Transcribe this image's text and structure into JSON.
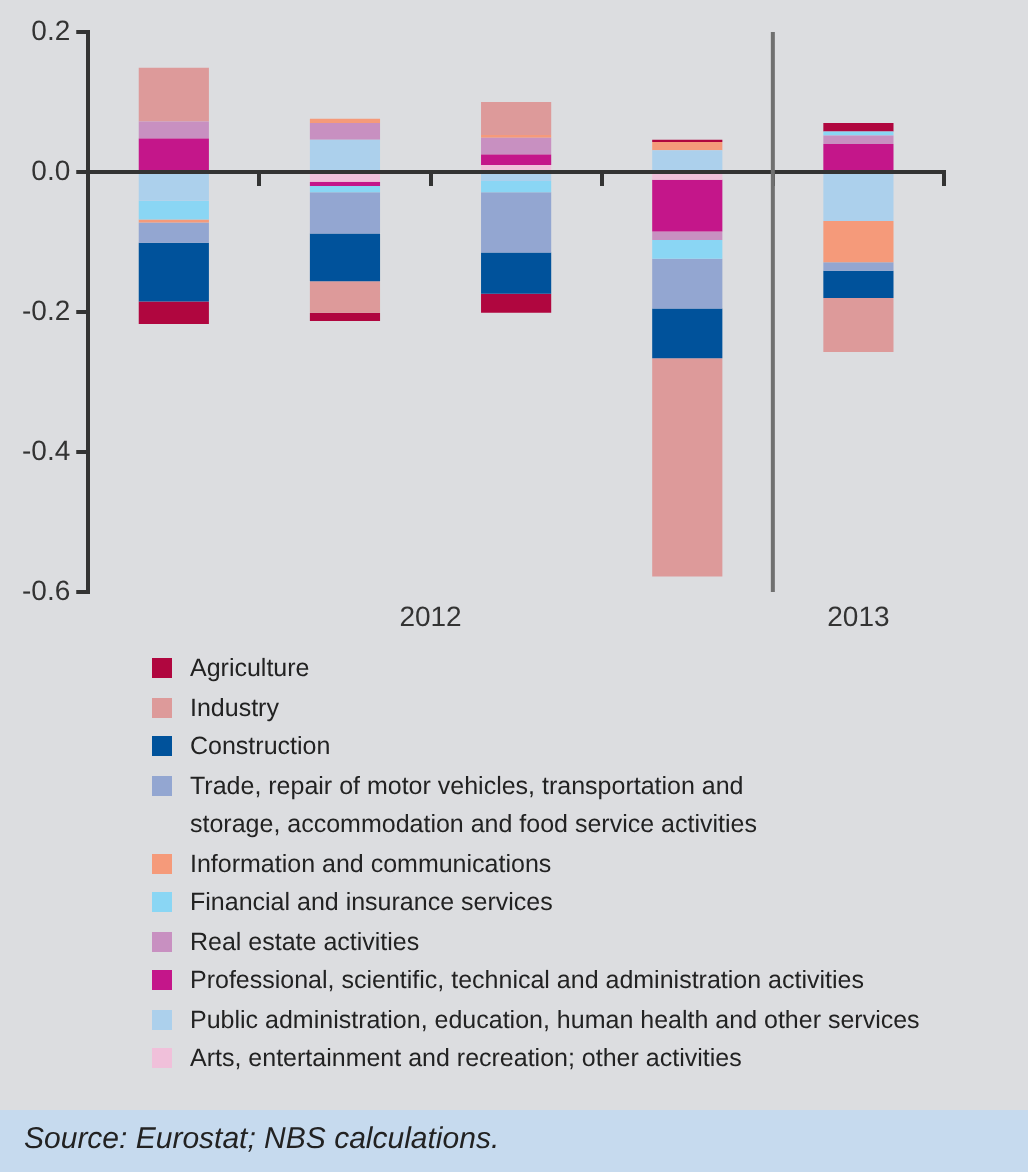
{
  "chart_data": {
    "type": "bar",
    "stacked": true,
    "categories": [
      null,
      null,
      null,
      null,
      null
    ],
    "series": [
      {
        "name": "Arts, entertainment and recreation; other activities",
        "color": "#f0c0da",
        "values": [
          0,
          -0.014,
          0.01,
          -0.011,
          0
        ]
      },
      {
        "name": "Public administration, education, human health and other services",
        "color": "#acd0ec",
        "values": [
          -0.041,
          0.046,
          -0.013,
          0.031,
          -0.07
        ]
      },
      {
        "name": "Professional, scientific, technical and administration activities",
        "color": "#c4168a",
        "values": [
          0.048,
          -0.006,
          0.015,
          -0.074,
          0.04
        ]
      },
      {
        "name": "Real estate activities",
        "color": "#c890c1",
        "values": [
          0.024,
          0.024,
          0.024,
          -0.012,
          0.012
        ]
      },
      {
        "name": "Financial and insurance services",
        "color": "#8ad6f4",
        "values": [
          -0.027,
          -0.009,
          -0.016,
          -0.027,
          0.006
        ]
      },
      {
        "name": "Information and communications",
        "color": "#f59a7a",
        "values": [
          -0.004,
          0.006,
          0.004,
          0.012,
          -0.059
        ]
      },
      {
        "name": "Trade, repair of motor vehicles, transportation and storage, accommodation and food service activities",
        "color": "#93a6d1",
        "values": [
          -0.029,
          -0.059,
          -0.086,
          -0.071,
          -0.012
        ]
      },
      {
        "name": "Construction",
        "color": "#00529b",
        "values": [
          -0.084,
          -0.068,
          -0.059,
          -0.071,
          -0.039
        ]
      },
      {
        "name": "Industry",
        "color": "#dd9a9a",
        "values": [
          0.077,
          -0.045,
          0.047,
          -0.312,
          -0.077
        ]
      },
      {
        "name": "Agriculture",
        "color": "#b0063f",
        "values": [
          -0.032,
          -0.012,
          -0.027,
          0.003,
          0.012
        ]
      }
    ],
    "ylim": [
      -0.6,
      0.2
    ],
    "yticks": [
      -0.6,
      -0.4,
      -0.2,
      {
        "value": 0,
        "label": "0.0"
      },
      0.2
    ],
    "annotations": [
      "2012",
      "2013",
      "Source: Eurostat; NBS calculations."
    ],
    "legend": "bottom"
  }
}
